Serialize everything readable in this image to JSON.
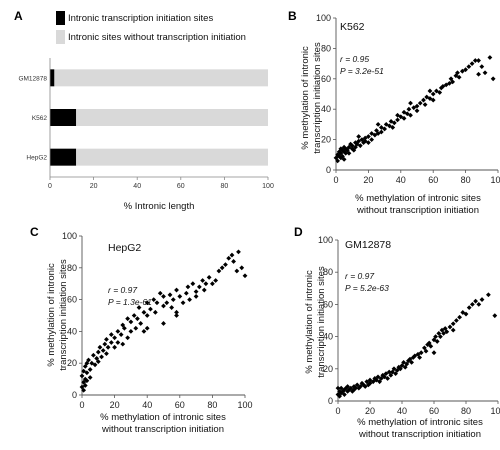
{
  "panels": {
    "A": {
      "letter": "A",
      "legend": [
        {
          "label": "Intronic transcription initiation sites",
          "color": "#000000"
        },
        {
          "label": "Intronic sites without transcription initiation",
          "color": "#d9d9d9"
        }
      ],
      "xlabel": "% Intronic length",
      "xticks": [
        0,
        20,
        40,
        60,
        80,
        100
      ]
    },
    "B": {
      "letter": "B",
      "cell_line": "K562",
      "r": "r = 0.95",
      "p": "P = 3.2e-51",
      "ylabel_line1": "% methylation of intronic",
      "ylabel_line2": "transcription initiation sites",
      "xlabel_line1": "% methylation of intronic sites",
      "xlabel_line2": "without transcription initiation",
      "ticks": [
        0,
        20,
        40,
        60,
        80,
        100
      ]
    },
    "C": {
      "letter": "C",
      "cell_line": "HepG2",
      "r": "r = 0.97",
      "p": "P = 1.3e-61",
      "ylabel_line1": "% methylation of intronic",
      "ylabel_line2": "transcription initiation sites",
      "xlabel_line1": "% methylation of intronic sites",
      "xlabel_line2": "without transcription initiation",
      "ticks": [
        0,
        20,
        40,
        60,
        80,
        100
      ]
    },
    "D": {
      "letter": "D",
      "cell_line": "GM12878",
      "r": "r = 0.97",
      "p": "P = 5.2e-63",
      "ylabel_line1": "% methylation of intronic",
      "ylabel_line2": "transcription initiation sites",
      "xlabel_line1": "% methylation of intronic sites",
      "xlabel_line2": "without transcription initiation",
      "ticks": [
        0,
        20,
        40,
        60,
        80,
        100
      ]
    }
  },
  "chart_data": [
    {
      "panel": "A",
      "type": "bar",
      "orientation": "horizontal",
      "stacked": true,
      "categories": [
        "GM12878",
        "K562",
        "HepG2"
      ],
      "series": [
        {
          "name": "Intronic transcription initiation sites",
          "values": [
            2,
            12,
            12
          ]
        },
        {
          "name": "Intronic sites without transcription initiation",
          "values": [
            98,
            88,
            88
          ]
        }
      ],
      "xlabel": "% Intronic length",
      "xlim": [
        0,
        100
      ]
    },
    {
      "panel": "B",
      "type": "scatter",
      "xlim": [
        0,
        100
      ],
      "ylim": [
        0,
        100
      ],
      "points": [
        [
          0,
          8
        ],
        [
          1,
          6
        ],
        [
          1,
          10
        ],
        [
          2,
          9
        ],
        [
          2,
          12
        ],
        [
          3,
          8
        ],
        [
          3,
          11
        ],
        [
          4,
          13
        ],
        [
          4,
          9
        ],
        [
          5,
          12
        ],
        [
          5,
          15
        ],
        [
          6,
          11
        ],
        [
          6,
          14
        ],
        [
          7,
          13
        ],
        [
          8,
          15
        ],
        [
          8,
          11
        ],
        [
          9,
          17
        ],
        [
          10,
          14
        ],
        [
          10,
          16
        ],
        [
          11,
          13
        ],
        [
          12,
          18
        ],
        [
          12,
          15
        ],
        [
          13,
          17
        ],
        [
          14,
          19
        ],
        [
          15,
          16
        ],
        [
          16,
          20
        ],
        [
          17,
          18
        ],
        [
          18,
          21
        ],
        [
          18,
          19
        ],
        [
          20,
          22
        ],
        [
          20,
          18
        ],
        [
          22,
          24
        ],
        [
          22,
          20
        ],
        [
          24,
          23
        ],
        [
          25,
          26
        ],
        [
          26,
          24
        ],
        [
          28,
          25
        ],
        [
          28,
          28
        ],
        [
          30,
          27
        ],
        [
          31,
          30
        ],
        [
          33,
          29
        ],
        [
          34,
          32
        ],
        [
          35,
          28
        ],
        [
          36,
          31
        ],
        [
          38,
          33
        ],
        [
          38,
          36
        ],
        [
          40,
          35
        ],
        [
          42,
          34
        ],
        [
          42,
          38
        ],
        [
          44,
          37
        ],
        [
          45,
          40
        ],
        [
          46,
          36
        ],
        [
          48,
          41
        ],
        [
          50,
          42
        ],
        [
          50,
          39
        ],
        [
          52,
          44
        ],
        [
          54,
          46
        ],
        [
          55,
          43
        ],
        [
          56,
          48
        ],
        [
          58,
          47
        ],
        [
          60,
          50
        ],
        [
          60,
          46
        ],
        [
          62,
          52
        ],
        [
          64,
          51
        ],
        [
          65,
          54
        ],
        [
          66,
          55
        ],
        [
          68,
          56
        ],
        [
          70,
          57
        ],
        [
          71,
          60
        ],
        [
          72,
          58
        ],
        [
          74,
          62
        ],
        [
          75,
          64
        ],
        [
          76,
          61
        ],
        [
          78,
          65
        ],
        [
          80,
          66
        ],
        [
          82,
          68
        ],
        [
          84,
          70
        ],
        [
          86,
          72
        ],
        [
          88,
          72
        ],
        [
          90,
          68
        ],
        [
          92,
          64
        ],
        [
          95,
          74
        ],
        [
          97,
          60
        ],
        [
          88,
          63
        ],
        [
          3,
          14
        ],
        [
          5,
          7
        ],
        [
          14,
          22
        ],
        [
          26,
          30
        ],
        [
          46,
          44
        ],
        [
          58,
          52
        ]
      ]
    },
    {
      "panel": "C",
      "type": "scatter",
      "xlim": [
        0,
        100
      ],
      "ylim": [
        0,
        100
      ],
      "points": [
        [
          0,
          5
        ],
        [
          0,
          12
        ],
        [
          1,
          8
        ],
        [
          1,
          15
        ],
        [
          1,
          3
        ],
        [
          2,
          10
        ],
        [
          2,
          18
        ],
        [
          2,
          6
        ],
        [
          3,
          14
        ],
        [
          3,
          20
        ],
        [
          3,
          9
        ],
        [
          4,
          22
        ],
        [
          5,
          16
        ],
        [
          5,
          11
        ],
        [
          6,
          20
        ],
        [
          7,
          25
        ],
        [
          8,
          19
        ],
        [
          9,
          23
        ],
        [
          10,
          27
        ],
        [
          10,
          21
        ],
        [
          11,
          30
        ],
        [
          12,
          24
        ],
        [
          13,
          28
        ],
        [
          14,
          32
        ],
        [
          15,
          26
        ],
        [
          15,
          35
        ],
        [
          16,
          30
        ],
        [
          18,
          33
        ],
        [
          18,
          38
        ],
        [
          20,
          30
        ],
        [
          20,
          36
        ],
        [
          22,
          40
        ],
        [
          22,
          33
        ],
        [
          24,
          38
        ],
        [
          25,
          44
        ],
        [
          26,
          42
        ],
        [
          28,
          36
        ],
        [
          28,
          48
        ],
        [
          30,
          40
        ],
        [
          30,
          46
        ],
        [
          32,
          50
        ],
        [
          33,
          42
        ],
        [
          34,
          48
        ],
        [
          35,
          55
        ],
        [
          36,
          45
        ],
        [
          38,
          52
        ],
        [
          38,
          40
        ],
        [
          40,
          50
        ],
        [
          40,
          58
        ],
        [
          42,
          54
        ],
        [
          44,
          60
        ],
        [
          45,
          52
        ],
        [
          46,
          58
        ],
        [
          48,
          64
        ],
        [
          50,
          56
        ],
        [
          50,
          62
        ],
        [
          52,
          58
        ],
        [
          54,
          63
        ],
        [
          55,
          55
        ],
        [
          56,
          60
        ],
        [
          58,
          52
        ],
        [
          58,
          66
        ],
        [
          60,
          62
        ],
        [
          62,
          58
        ],
        [
          64,
          64
        ],
        [
          65,
          68
        ],
        [
          66,
          60
        ],
        [
          68,
          70
        ],
        [
          70,
          62
        ],
        [
          70,
          65
        ],
        [
          72,
          68
        ],
        [
          74,
          72
        ],
        [
          75,
          66
        ],
        [
          76,
          70
        ],
        [
          78,
          74
        ],
        [
          80,
          70
        ],
        [
          82,
          72
        ],
        [
          84,
          78
        ],
        [
          86,
          80
        ],
        [
          88,
          82
        ],
        [
          90,
          86
        ],
        [
          92,
          88
        ],
        [
          93,
          84
        ],
        [
          95,
          78
        ],
        [
          96,
          90
        ],
        [
          98,
          80
        ],
        [
          100,
          75
        ],
        [
          58,
          50
        ],
        [
          40,
          42
        ],
        [
          25,
          32
        ],
        [
          50,
          45
        ]
      ]
    },
    {
      "panel": "D",
      "type": "scatter",
      "xlim": [
        0,
        100
      ],
      "ylim": [
        0,
        100
      ],
      "points": [
        [
          0,
          8
        ],
        [
          0,
          4
        ],
        [
          1,
          6
        ],
        [
          1,
          3
        ],
        [
          2,
          5
        ],
        [
          2,
          8
        ],
        [
          3,
          6
        ],
        [
          4,
          7
        ],
        [
          4,
          4
        ],
        [
          5,
          8
        ],
        [
          6,
          6
        ],
        [
          6,
          9
        ],
        [
          7,
          7
        ],
        [
          8,
          8
        ],
        [
          9,
          6
        ],
        [
          10,
          9
        ],
        [
          10,
          7
        ],
        [
          11,
          8
        ],
        [
          12,
          10
        ],
        [
          13,
          8
        ],
        [
          14,
          9
        ],
        [
          15,
          11
        ],
        [
          16,
          10
        ],
        [
          17,
          9
        ],
        [
          18,
          12
        ],
        [
          19,
          10
        ],
        [
          20,
          11
        ],
        [
          20,
          13
        ],
        [
          22,
          12
        ],
        [
          23,
          14
        ],
        [
          24,
          13
        ],
        [
          25,
          15
        ],
        [
          26,
          12
        ],
        [
          27,
          14
        ],
        [
          28,
          16
        ],
        [
          29,
          15
        ],
        [
          30,
          17
        ],
        [
          31,
          14
        ],
        [
          32,
          18
        ],
        [
          33,
          16
        ],
        [
          34,
          18
        ],
        [
          35,
          20
        ],
        [
          36,
          17
        ],
        [
          37,
          19
        ],
        [
          38,
          21
        ],
        [
          39,
          20
        ],
        [
          40,
          22
        ],
        [
          41,
          24
        ],
        [
          42,
          21
        ],
        [
          43,
          23
        ],
        [
          44,
          25
        ],
        [
          45,
          26
        ],
        [
          46,
          24
        ],
        [
          47,
          27
        ],
        [
          48,
          28
        ],
        [
          50,
          29
        ],
        [
          51,
          27
        ],
        [
          52,
          30
        ],
        [
          54,
          33
        ],
        [
          55,
          31
        ],
        [
          56,
          35
        ],
        [
          57,
          36
        ],
        [
          58,
          34
        ],
        [
          60,
          38
        ],
        [
          61,
          40
        ],
        [
          62,
          37
        ],
        [
          63,
          42
        ],
        [
          64,
          40
        ],
        [
          65,
          44
        ],
        [
          66,
          42
        ],
        [
          67,
          45
        ],
        [
          68,
          43
        ],
        [
          70,
          46
        ],
        [
          72,
          48
        ],
        [
          74,
          50
        ],
        [
          76,
          52
        ],
        [
          78,
          55
        ],
        [
          80,
          54
        ],
        [
          82,
          58
        ],
        [
          84,
          60
        ],
        [
          86,
          62
        ],
        [
          88,
          60
        ],
        [
          90,
          63
        ],
        [
          94,
          66
        ],
        [
          98,
          53
        ],
        [
          60,
          30
        ],
        [
          72,
          44
        ]
      ]
    }
  ]
}
